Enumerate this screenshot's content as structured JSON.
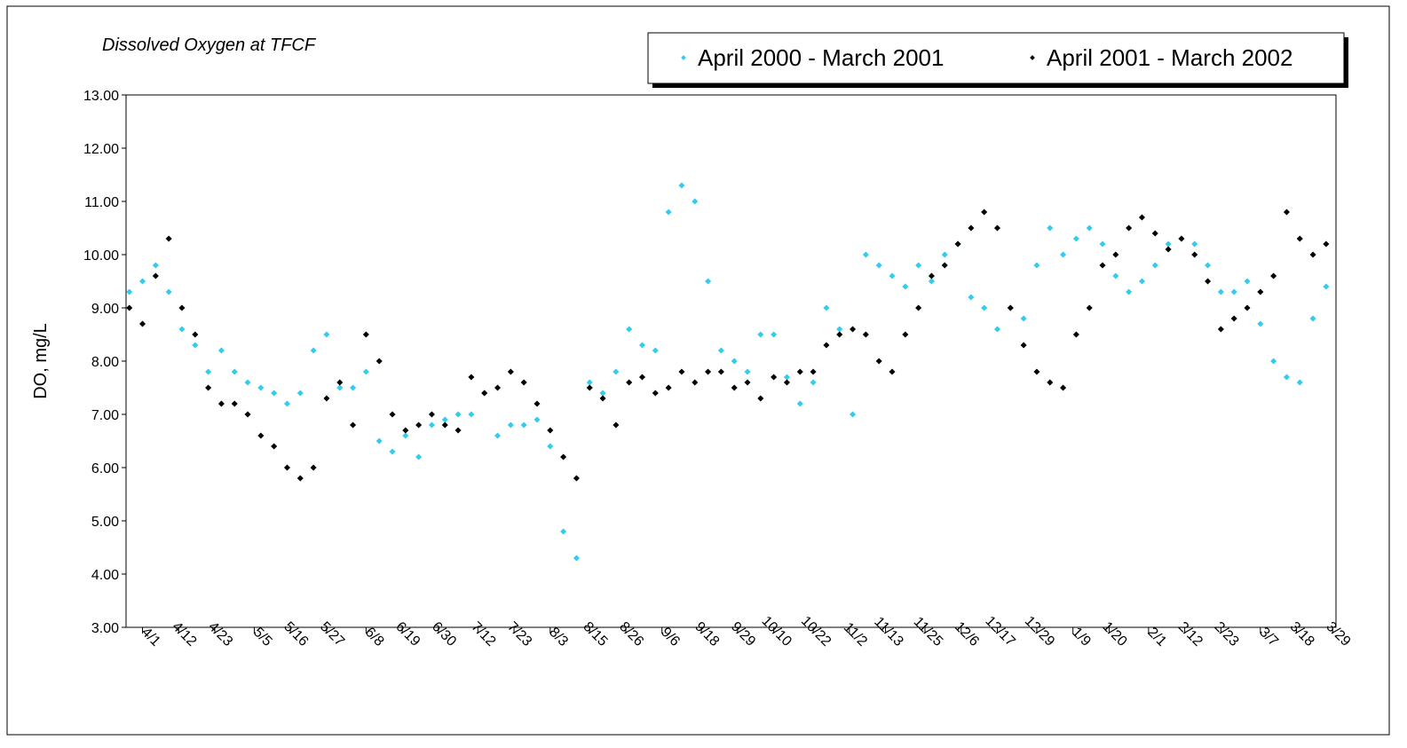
{
  "chart_data": {
    "type": "scatter",
    "title": "Dissolved Oxygen at TFCF",
    "y_label": "DO, mg/L",
    "x": [
      -4,
      0,
      4,
      8,
      12,
      16,
      20,
      24,
      28,
      32,
      36,
      40,
      44,
      48,
      52,
      56,
      60,
      64,
      68,
      72,
      76,
      80,
      84,
      88,
      92,
      96,
      100,
      104,
      108,
      112,
      116,
      120,
      124,
      128,
      132,
      136,
      140,
      144,
      148,
      152,
      156,
      160,
      164,
      168,
      172,
      176,
      180,
      184,
      188,
      192,
      196,
      200,
      204,
      208,
      212,
      216,
      220,
      224,
      228,
      232,
      236,
      240,
      244,
      248,
      252,
      256,
      260,
      264,
      268,
      272,
      276,
      280,
      284,
      288,
      292,
      296,
      300,
      304,
      308,
      312,
      316,
      320,
      324,
      328,
      332,
      336,
      340,
      344,
      348,
      352,
      356,
      360
    ],
    "xlim": [
      -5,
      363
    ],
    "xticks": [
      {
        "value": 0,
        "label": "4/1"
      },
      {
        "value": 11,
        "label": "4/12"
      },
      {
        "value": 22,
        "label": "4/23"
      },
      {
        "value": 34,
        "label": "5/5"
      },
      {
        "value": 45,
        "label": "5/16"
      },
      {
        "value": 56,
        "label": "5/27"
      },
      {
        "value": 68,
        "label": "6/8"
      },
      {
        "value": 79,
        "label": "6/19"
      },
      {
        "value": 90,
        "label": "6/30"
      },
      {
        "value": 102,
        "label": "7/12"
      },
      {
        "value": 113,
        "label": "7/23"
      },
      {
        "value": 124,
        "label": "8/3"
      },
      {
        "value": 136,
        "label": "8/15"
      },
      {
        "value": 147,
        "label": "8/26"
      },
      {
        "value": 158,
        "label": "9/6"
      },
      {
        "value": 170,
        "label": "9/18"
      },
      {
        "value": 181,
        "label": "9/29"
      },
      {
        "value": 192,
        "label": "10/10"
      },
      {
        "value": 204,
        "label": "10/22"
      },
      {
        "value": 215,
        "label": "11/2"
      },
      {
        "value": 226,
        "label": "11/13"
      },
      {
        "value": 238,
        "label": "11/25"
      },
      {
        "value": 249,
        "label": "12/6"
      },
      {
        "value": 260,
        "label": "12/17"
      },
      {
        "value": 272,
        "label": "12/29"
      },
      {
        "value": 283,
        "label": "1/9"
      },
      {
        "value": 294,
        "label": "1/20"
      },
      {
        "value": 306,
        "label": "2/1"
      },
      {
        "value": 317,
        "label": "2/12"
      },
      {
        "value": 328,
        "label": "2/23"
      },
      {
        "value": 340,
        "label": "3/7"
      },
      {
        "value": 351,
        "label": "3/18"
      },
      {
        "value": 362,
        "label": "3/29"
      }
    ],
    "ylim": [
      3,
      13
    ],
    "yticks": [
      {
        "value": 3,
        "label": "3.00"
      },
      {
        "value": 4,
        "label": "4.00"
      },
      {
        "value": 5,
        "label": "5.00"
      },
      {
        "value": 6,
        "label": "6.00"
      },
      {
        "value": 7,
        "label": "7.00"
      },
      {
        "value": 8,
        "label": "8.00"
      },
      {
        "value": 9,
        "label": "9.00"
      },
      {
        "value": 10,
        "label": "10.00"
      },
      {
        "value": 11,
        "label": "11.00"
      },
      {
        "value": 12,
        "label": "12.00"
      },
      {
        "value": 13,
        "label": "13.00"
      }
    ],
    "series": [
      {
        "name": "April 2000 - March 2001",
        "color": "#33ccf0",
        "values": [
          9.3,
          9.5,
          9.8,
          9.3,
          8.6,
          8.3,
          7.8,
          8.2,
          7.8,
          7.6,
          7.5,
          7.4,
          7.2,
          7.4,
          8.2,
          8.5,
          7.5,
          7.5,
          7.8,
          6.5,
          6.3,
          6.6,
          6.2,
          6.8,
          6.9,
          7.0,
          7.0,
          7.4,
          6.6,
          6.8,
          6.8,
          6.9,
          6.4,
          4.8,
          4.3,
          7.6,
          7.4,
          7.8,
          8.6,
          8.3,
          8.2,
          10.8,
          11.3,
          11.0,
          9.5,
          8.2,
          8.0,
          7.8,
          8.5,
          8.5,
          7.7,
          7.2,
          7.6,
          9.0,
          8.6,
          7.0,
          10.0,
          9.8,
          9.6,
          9.4,
          9.8,
          9.5,
          10.0,
          10.2,
          9.2,
          9.0,
          8.6,
          9.0,
          8.8,
          9.8,
          10.5,
          10.0,
          10.3,
          10.5,
          10.2,
          9.6,
          9.3,
          9.5,
          9.8,
          10.2,
          10.3,
          10.2,
          9.8,
          9.3,
          9.3,
          9.5,
          8.7,
          8.0,
          7.7,
          7.6,
          8.8,
          9.4
        ]
      },
      {
        "name": "April 2001 - March 2002",
        "color": "#000000",
        "values": [
          9.0,
          8.7,
          9.6,
          10.3,
          9.0,
          8.5,
          7.5,
          7.2,
          7.2,
          7.0,
          6.6,
          6.4,
          6.0,
          5.8,
          6.0,
          7.3,
          7.6,
          6.8,
          8.5,
          8.0,
          7.0,
          6.7,
          6.8,
          7.0,
          6.8,
          6.7,
          7.7,
          7.4,
          7.5,
          7.8,
          7.6,
          7.2,
          6.7,
          6.2,
          5.8,
          7.5,
          7.3,
          6.8,
          7.6,
          7.7,
          7.4,
          7.5,
          7.8,
          7.6,
          7.8,
          7.8,
          7.5,
          7.6,
          7.3,
          7.7,
          7.6,
          7.8,
          7.8,
          8.3,
          8.5,
          8.6,
          8.5,
          8.0,
          7.8,
          8.5,
          9.0,
          9.6,
          9.8,
          10.2,
          10.5,
          10.8,
          10.5,
          9.0,
          8.3,
          7.8,
          7.6,
          7.5,
          8.5,
          9.0,
          9.8,
          10.0,
          10.5,
          10.7,
          10.4,
          10.1,
          10.3,
          10.0,
          9.5,
          8.6,
          8.8,
          9.0,
          9.3,
          9.6,
          10.8,
          10.3,
          10.0,
          10.2
        ]
      }
    ]
  }
}
